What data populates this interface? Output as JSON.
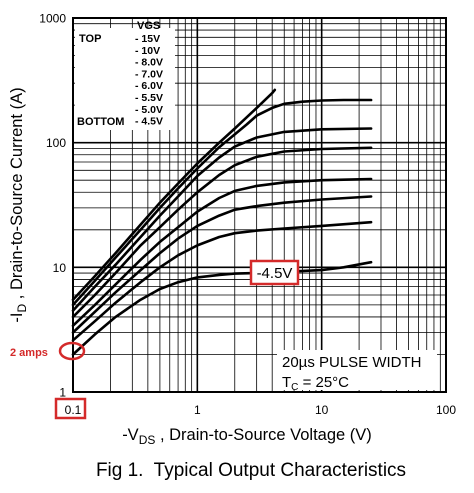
{
  "chart_data": {
    "type": "line",
    "title": "Fig 1.  Typical Output Characteristics",
    "xlabel": {
      "prefix": "-V",
      "sub": "DS",
      "rest": " , Drain-to-Source Voltage (V)"
    },
    "ylabel": {
      "prefix": "-I",
      "sub": "D",
      "rest": " , Drain-to-Source Current (A)"
    },
    "x_scale": "log",
    "y_scale": "log",
    "xlim": [
      0.1,
      100
    ],
    "ylim": [
      1,
      1000
    ],
    "x_ticks": [
      "0.1",
      "1",
      "10",
      "100"
    ],
    "y_ticks": [
      "1",
      "10",
      "100",
      "1000"
    ],
    "grid": true,
    "legend": {
      "title": "VGS",
      "top_label": "TOP",
      "bottom_label": "BOTTOM",
      "entries": [
        "- 15V",
        "- 10V",
        "- 8.0V",
        "- 7.0V",
        "- 6.0V",
        "- 5.5V",
        "- 5.0V",
        "- 4.5V"
      ]
    },
    "conditions": {
      "pulse": "20µs PULSE WIDTH",
      "temp_prefix": "T",
      "temp_sub": "C",
      "temp_rest": " = 25°C"
    },
    "series": [
      {
        "name": "- 15V",
        "points": [
          [
            0.1,
            5.5
          ],
          [
            0.15,
            8.5
          ],
          [
            0.22,
            13
          ],
          [
            0.35,
            22
          ],
          [
            0.5,
            33
          ],
          [
            0.7,
            47
          ],
          [
            1,
            68
          ],
          [
            1.5,
            100
          ],
          [
            2,
            130
          ],
          [
            3,
            190
          ],
          [
            4,
            250
          ],
          [
            4.2,
            265
          ]
        ]
      },
      {
        "name": "- 10V",
        "points": [
          [
            0.1,
            5
          ],
          [
            0.15,
            7.8
          ],
          [
            0.22,
            12
          ],
          [
            0.35,
            20
          ],
          [
            0.5,
            30
          ],
          [
            0.7,
            43
          ],
          [
            1,
            62
          ],
          [
            1.5,
            92
          ],
          [
            2.5,
            140
          ],
          [
            3,
            165
          ],
          [
            4,
            190
          ],
          [
            5,
            205
          ],
          [
            7,
            213
          ],
          [
            10,
            218
          ],
          [
            15,
            220
          ],
          [
            25,
            220
          ]
        ]
      },
      {
        "name": "- 8.0V",
        "points": [
          [
            0.1,
            4.5
          ],
          [
            0.15,
            7
          ],
          [
            0.22,
            10.5
          ],
          [
            0.35,
            17.5
          ],
          [
            0.5,
            26
          ],
          [
            0.7,
            37
          ],
          [
            1,
            54
          ],
          [
            1.5,
            76
          ],
          [
            2,
            93
          ],
          [
            3,
            110
          ],
          [
            5,
            122
          ],
          [
            10,
            128
          ],
          [
            25,
            130
          ]
        ]
      },
      {
        "name": "- 7.0V",
        "points": [
          [
            0.1,
            4
          ],
          [
            0.15,
            6
          ],
          [
            0.22,
            9
          ],
          [
            0.35,
            15
          ],
          [
            0.5,
            21
          ],
          [
            0.7,
            29
          ],
          [
            1,
            40
          ],
          [
            1.5,
            55
          ],
          [
            2,
            66
          ],
          [
            3,
            77
          ],
          [
            5,
            85
          ],
          [
            10,
            89
          ],
          [
            25,
            91
          ]
        ]
      },
      {
        "name": "- 6.0V",
        "points": [
          [
            0.1,
            3.4
          ],
          [
            0.15,
            5
          ],
          [
            0.22,
            7.3
          ],
          [
            0.35,
            11.5
          ],
          [
            0.5,
            16
          ],
          [
            0.7,
            21
          ],
          [
            1,
            28
          ],
          [
            1.5,
            36
          ],
          [
            2,
            41
          ],
          [
            3,
            45
          ],
          [
            5,
            48
          ],
          [
            10,
            50
          ],
          [
            25,
            51
          ]
        ]
      },
      {
        "name": "- 5.5V",
        "points": [
          [
            0.1,
            3
          ],
          [
            0.15,
            4.4
          ],
          [
            0.22,
            6.3
          ],
          [
            0.35,
            9.5
          ],
          [
            0.5,
            13
          ],
          [
            0.7,
            17
          ],
          [
            1,
            21.5
          ],
          [
            1.5,
            26
          ],
          [
            2,
            29
          ],
          [
            3,
            31
          ],
          [
            5,
            33
          ],
          [
            10,
            35
          ],
          [
            25,
            37
          ]
        ]
      },
      {
        "name": "- 5.0V",
        "points": [
          [
            0.1,
            2.6
          ],
          [
            0.15,
            3.7
          ],
          [
            0.22,
            5.2
          ],
          [
            0.35,
            7.6
          ],
          [
            0.5,
            10
          ],
          [
            0.7,
            12.5
          ],
          [
            1,
            15
          ],
          [
            1.5,
            17.5
          ],
          [
            2,
            18.8
          ],
          [
            3,
            19.7
          ],
          [
            5,
            20.5
          ],
          [
            10,
            21.5
          ],
          [
            25,
            23
          ]
        ]
      },
      {
        "name": "- 4.5V",
        "points": [
          [
            0.1,
            2
          ],
          [
            0.15,
            2.9
          ],
          [
            0.22,
            4
          ],
          [
            0.35,
            5.5
          ],
          [
            0.5,
            6.7
          ],
          [
            0.7,
            7.6
          ],
          [
            1,
            8.3
          ],
          [
            1.5,
            8.7
          ],
          [
            2,
            8.9
          ],
          [
            3,
            9
          ],
          [
            5,
            9.2
          ],
          [
            10,
            9.5
          ],
          [
            15,
            10
          ],
          [
            25,
            11
          ]
        ]
      }
    ],
    "annotations": [
      {
        "text": "-4.5V",
        "x": 5,
        "y": 9.2
      },
      {
        "text": "2 amps",
        "x": 0.1,
        "y": 2
      }
    ],
    "colors": {
      "line": "#000000",
      "grid": "#000000",
      "highlight": "#d42a2a"
    }
  }
}
